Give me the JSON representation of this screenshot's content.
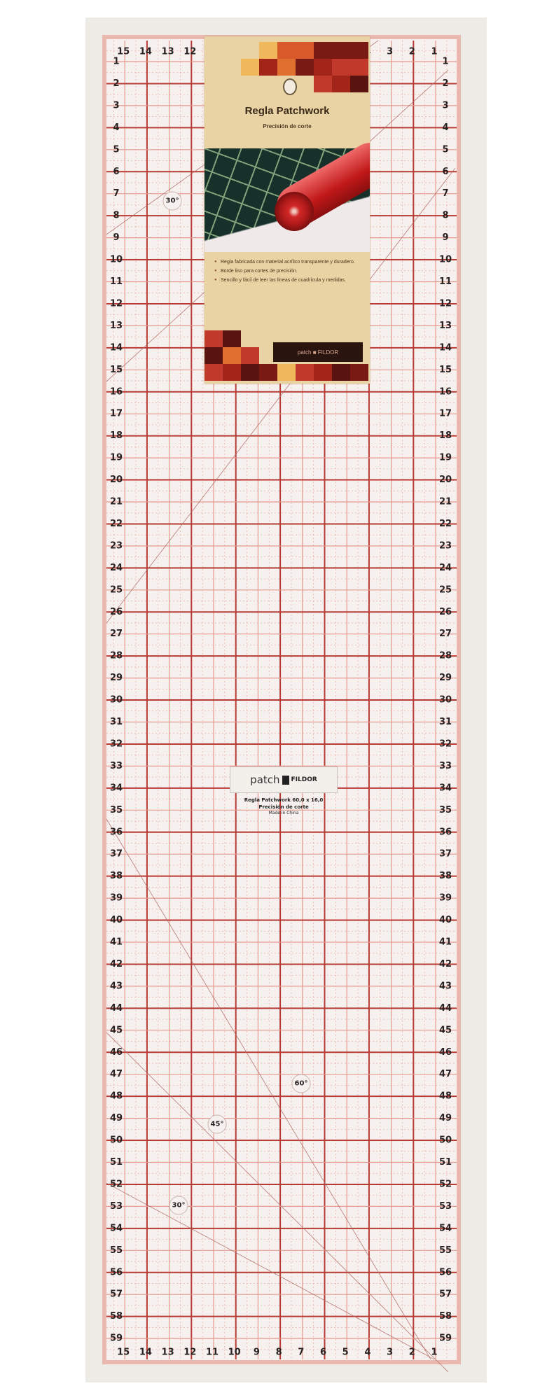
{
  "ruler": {
    "column_labels": [
      15,
      14,
      13,
      12,
      11,
      10,
      9,
      8,
      7,
      6,
      5,
      4,
      3,
      2,
      1
    ],
    "row_labels": [
      1,
      2,
      3,
      4,
      5,
      6,
      7,
      8,
      9,
      10,
      11,
      12,
      13,
      14,
      15,
      16,
      17,
      18,
      19,
      20,
      21,
      22,
      23,
      24,
      25,
      26,
      27,
      28,
      29,
      30,
      31,
      32,
      33,
      34,
      35,
      36,
      37,
      38,
      39,
      40,
      41,
      42,
      43,
      44,
      45,
      46,
      47,
      48,
      49,
      50,
      51,
      52,
      53,
      54,
      55,
      56,
      57,
      58,
      59
    ],
    "angle_labels": {
      "top_30": "30°",
      "bottom_60": "60°",
      "bottom_45": "45°",
      "bottom_30": "30°"
    },
    "colors": {
      "grid_major": "#b83a34",
      "grid_minor": "#e59a90",
      "body": "#f6f1ee",
      "edge": "#eab8ae"
    }
  },
  "package_card": {
    "title": "Regla Patchwork",
    "subtitle": "Precisión de corte",
    "bullets": [
      "Regla fabricada con material acrílico transparente y duradero.",
      "Borde liso para cortes de precisión.",
      "Sencillo y fácil de leer las líneas de cuadrícula y medidas."
    ],
    "brand": "patch ■ FILDOR"
  },
  "ruler_print": {
    "logo_left": "patch",
    "logo_right": "FILDOR",
    "line1": "Regla Patchwork 60,0 x 16,0",
    "line2": "Precisión de corte",
    "line3": "Made in China"
  }
}
